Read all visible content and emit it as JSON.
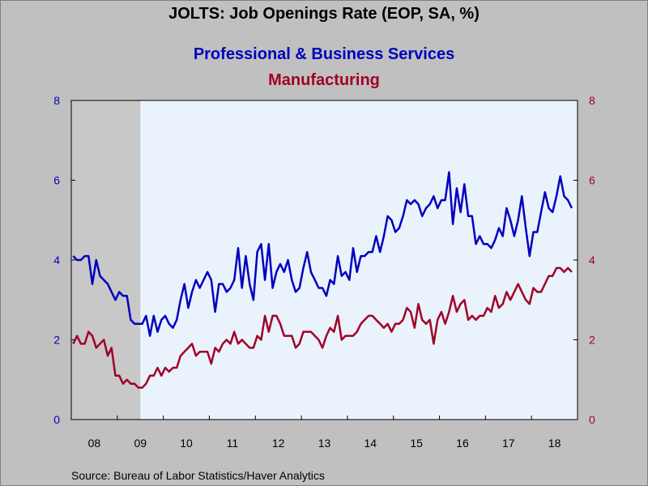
{
  "chart_data": {
    "type": "line",
    "title": "JOLTS: Job Openings Rate (EOP, SA, %)",
    "source": "Source:  Bureau of Labor Statistics/Haver Analytics",
    "x_tick_labels": [
      "08",
      "09",
      "10",
      "11",
      "12",
      "13",
      "14",
      "15",
      "16",
      "17",
      "18"
    ],
    "x_range": [
      "2008-01",
      "2018-12"
    ],
    "ylim_left": [
      0,
      8
    ],
    "ylim_right": [
      0,
      8
    ],
    "y_ticks": [
      0,
      2,
      4,
      6,
      8
    ],
    "recession_shading": {
      "start": "2008-01",
      "end": "2009-06",
      "color": "#c8c8c8"
    },
    "plot_background": "#eaf2fb",
    "series": [
      {
        "name": "Professional & Business Services",
        "axis": "left",
        "color": "#0000c0",
        "values": [
          4.1,
          4.0,
          4.0,
          4.1,
          4.1,
          3.4,
          4.0,
          3.6,
          3.5,
          3.4,
          3.2,
          3.0,
          3.2,
          3.1,
          3.1,
          2.5,
          2.4,
          2.4,
          2.4,
          2.6,
          2.1,
          2.6,
          2.2,
          2.5,
          2.6,
          2.4,
          2.3,
          2.5,
          3.0,
          3.4,
          2.8,
          3.2,
          3.5,
          3.3,
          3.5,
          3.7,
          3.5,
          2.7,
          3.4,
          3.4,
          3.2,
          3.3,
          3.5,
          4.3,
          3.3,
          4.1,
          3.4,
          3.0,
          4.2,
          4.4,
          3.5,
          4.4,
          3.3,
          3.7,
          3.9,
          3.7,
          4.0,
          3.5,
          3.2,
          3.3,
          3.8,
          4.2,
          3.7,
          3.5,
          3.3,
          3.3,
          3.1,
          3.5,
          3.4,
          4.1,
          3.6,
          3.7,
          3.5,
          4.3,
          3.7,
          4.1,
          4.1,
          4.2,
          4.2,
          4.6,
          4.2,
          4.6,
          5.1,
          5.0,
          4.7,
          4.8,
          5.1,
          5.5,
          5.4,
          5.5,
          5.4,
          5.1,
          5.3,
          5.4,
          5.6,
          5.3,
          5.5,
          5.5,
          6.2,
          4.9,
          5.8,
          5.2,
          5.9,
          5.1,
          5.1,
          4.4,
          4.6,
          4.4,
          4.4,
          4.3,
          4.5,
          4.8,
          4.6,
          5.3,
          5.0,
          4.6,
          5.0,
          5.6,
          4.8,
          4.1,
          4.7,
          4.7,
          5.2,
          5.7,
          5.3,
          5.2,
          5.6,
          6.1,
          5.6,
          5.5,
          5.3
        ]
      },
      {
        "name": "Manufacturing",
        "axis": "right",
        "color": "#a00028",
        "values": [
          1.9,
          2.1,
          1.9,
          1.9,
          2.2,
          2.1,
          1.8,
          1.9,
          2.0,
          1.6,
          1.8,
          1.1,
          1.1,
          0.9,
          1.0,
          0.9,
          0.9,
          0.8,
          0.8,
          0.9,
          1.1,
          1.1,
          1.3,
          1.1,
          1.3,
          1.2,
          1.3,
          1.3,
          1.6,
          1.7,
          1.8,
          1.9,
          1.6,
          1.7,
          1.7,
          1.7,
          1.4,
          1.8,
          1.7,
          1.9,
          2.0,
          1.9,
          2.2,
          1.9,
          2.0,
          1.9,
          1.8,
          1.8,
          2.1,
          2.0,
          2.6,
          2.2,
          2.6,
          2.6,
          2.4,
          2.1,
          2.1,
          2.1,
          1.8,
          1.9,
          2.2,
          2.2,
          2.2,
          2.1,
          2.0,
          1.8,
          2.1,
          2.3,
          2.2,
          2.6,
          2.0,
          2.1,
          2.1,
          2.1,
          2.2,
          2.4,
          2.5,
          2.6,
          2.6,
          2.5,
          2.4,
          2.3,
          2.4,
          2.2,
          2.4,
          2.4,
          2.5,
          2.8,
          2.7,
          2.3,
          2.9,
          2.5,
          2.4,
          2.5,
          1.9,
          2.5,
          2.7,
          2.4,
          2.7,
          3.1,
          2.7,
          2.9,
          3.0,
          2.5,
          2.6,
          2.5,
          2.6,
          2.6,
          2.8,
          2.7,
          3.1,
          2.8,
          2.9,
          3.2,
          3.0,
          3.2,
          3.4,
          3.2,
          3.0,
          2.9,
          3.3,
          3.2,
          3.2,
          3.4,
          3.6,
          3.6,
          3.8,
          3.8,
          3.7,
          3.8,
          3.7
        ]
      }
    ]
  }
}
